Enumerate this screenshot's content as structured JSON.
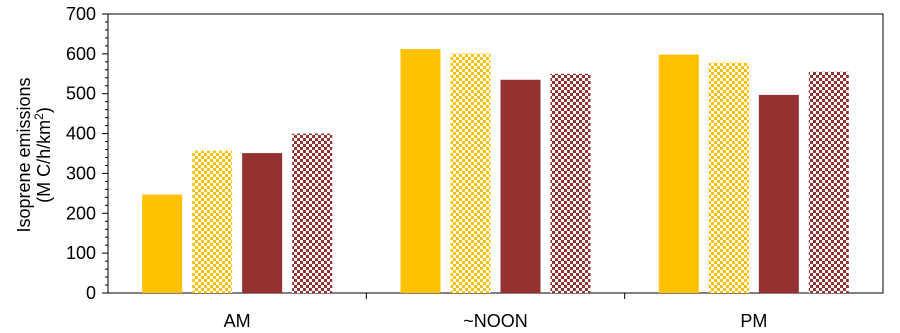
{
  "chart_data": {
    "type": "bar",
    "title": "",
    "xlabel": "",
    "ylabel_line1": "Isoprene emissions",
    "ylabel_line2_pre": "(M C/h/km",
    "ylabel_line2_sup": "2",
    "ylabel_line2_post": ")",
    "ylim": [
      0,
      700
    ],
    "yticks": [
      0,
      100,
      200,
      300,
      400,
      500,
      600,
      700
    ],
    "ytick_labels": [
      "0",
      "100",
      "200",
      "300",
      "400",
      "500",
      "600",
      "700"
    ],
    "categories": [
      "AM",
      "~NOON",
      "PM"
    ],
    "grid": false,
    "legend": "none",
    "series": [
      {
        "values": [
          247,
          612,
          598
        ],
        "color": "#FFC000",
        "pattern": "solid"
      },
      {
        "values": [
          357,
          601,
          578
        ],
        "color": "#FFC000",
        "pattern": "checker"
      },
      {
        "values": [
          351,
          535,
          497
        ],
        "color": "#943131",
        "pattern": "solid"
      },
      {
        "values": [
          400,
          550,
          555
        ],
        "color": "#943131",
        "pattern": "checker"
      }
    ]
  }
}
